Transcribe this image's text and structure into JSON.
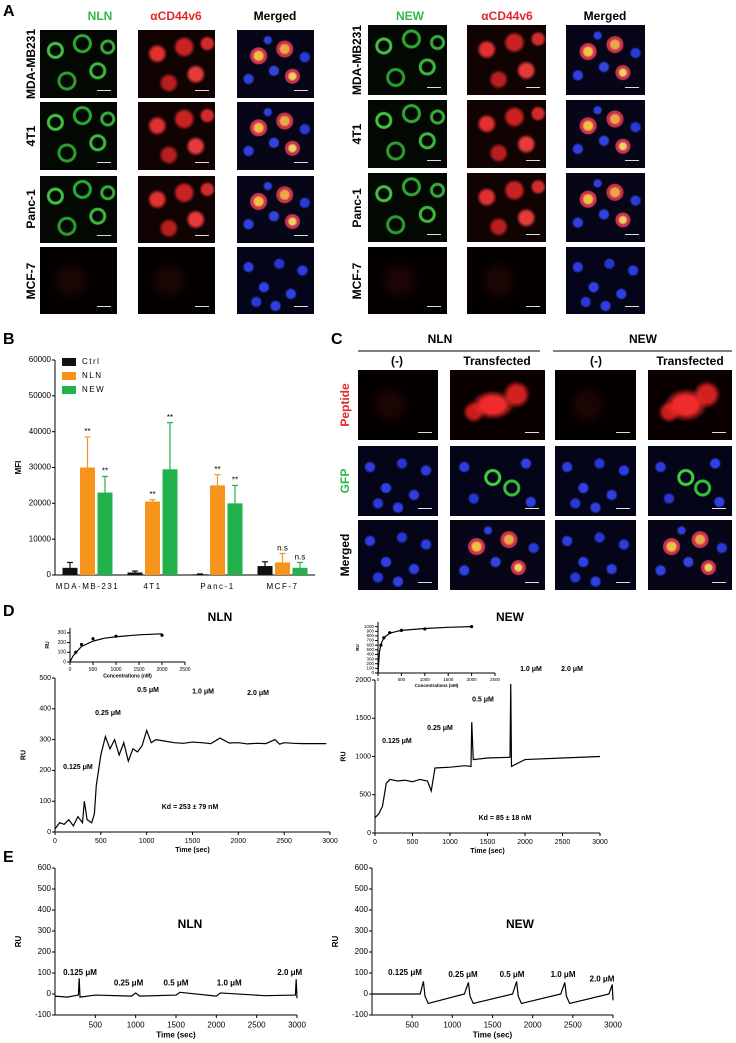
{
  "panel_labels": [
    "A",
    "B",
    "C",
    "D",
    "E"
  ],
  "panel_a": {
    "left": {
      "columns": [
        "NLN",
        "αCD44v6",
        "Merged"
      ],
      "rows": [
        "MDA-MB231",
        "4T1",
        "Panc-1",
        "MCF-7"
      ]
    },
    "right": {
      "columns": [
        "NEW",
        "αCD44v6",
        "Merged"
      ],
      "rows": [
        "MDA-MB231",
        "4T1",
        "Panc-1",
        "MCF-7"
      ]
    }
  },
  "panel_c": {
    "groups": [
      "NLN",
      "NEW"
    ],
    "columns": [
      "(-)",
      "Transfected",
      "(-)",
      "Transfected"
    ],
    "rows": [
      "Peptide",
      "GFP",
      "Merged"
    ]
  },
  "chart_data": [
    {
      "type": "bar",
      "categories": [
        "MDA-MB-231",
        "4T1",
        "Panc-1",
        "MCF-7"
      ],
      "y_label": "MFI",
      "ylim": [
        0,
        60000
      ],
      "yticks": [
        0,
        10000,
        20000,
        30000,
        40000,
        50000,
        60000
      ],
      "legend": "upper left",
      "series": [
        {
          "name": "Ctrl",
          "color": "#111111",
          "values": [
            2000,
            700,
            200,
            2500
          ],
          "errors": [
            1500,
            400,
            100,
            1200
          ]
        },
        {
          "name": "NLN",
          "color": "#f7941d",
          "values": [
            30000,
            20500,
            25000,
            3500
          ],
          "errors": [
            8500,
            500,
            3000,
            2500
          ],
          "annotations": [
            "**",
            "**",
            "**",
            "n.s"
          ]
        },
        {
          "name": "NEW",
          "color": "#22b24c",
          "values": [
            23000,
            29500,
            20000,
            2000
          ],
          "errors": [
            4500,
            13000,
            5000,
            1500
          ],
          "annotations": [
            "**",
            "**",
            "**",
            "n.s"
          ]
        }
      ]
    },
    {
      "type": "line",
      "title": "NLN",
      "x_label": "Time (sec)",
      "y_label": "RU",
      "color": "#000000",
      "xlim": [
        0,
        3000
      ],
      "ylim": [
        0,
        500
      ],
      "xticks": [
        0,
        500,
        1000,
        1500,
        2000,
        2500,
        3000
      ],
      "yticks": [
        0,
        100,
        200,
        300,
        400,
        500
      ],
      "x": [
        0,
        50,
        100,
        150,
        200,
        250,
        300,
        320,
        350,
        400,
        430,
        450,
        500,
        550,
        600,
        650,
        700,
        750,
        800,
        850,
        900,
        950,
        1000,
        1050,
        1100,
        1200,
        1300,
        1400,
        1500,
        1600,
        1700,
        1800,
        1900,
        2000,
        2100,
        2200,
        2300,
        2400,
        2450,
        2500,
        2600,
        2700,
        2800,
        2900,
        2960
      ],
      "values": [
        10,
        30,
        25,
        40,
        20,
        50,
        30,
        100,
        40,
        30,
        60,
        150,
        250,
        310,
        270,
        300,
        250,
        290,
        230,
        270,
        260,
        280,
        330,
        290,
        300,
        295,
        290,
        288,
        292,
        290,
        287,
        305,
        289,
        290,
        286,
        288,
        287,
        300,
        285,
        290,
        288,
        287,
        287,
        287,
        287
      ],
      "annotations": [
        {
          "text": "0.125 μM",
          "x": 250,
          "y": 210
        },
        {
          "text": "0.25 μM",
          "x": 578,
          "y": 386
        },
        {
          "text": "0.5 μM",
          "x": 1015,
          "y": 461
        },
        {
          "text": "1.0 μM",
          "x": 1615,
          "y": 455
        },
        {
          "text": "2.0 μM",
          "x": 2215,
          "y": 451
        },
        {
          "text": "Kd = 253 ± 79 nM",
          "x": 1473,
          "y": 81
        }
      ]
    },
    {
      "type": "line",
      "x_label": "Concentrations (nM)",
      "y_label": "RU",
      "xlim": [
        0,
        2500
      ],
      "ylim": [
        0,
        350
      ],
      "xticks": [
        0,
        500,
        1000,
        1500,
        2000,
        2500
      ],
      "yticks": [
        0,
        100,
        200,
        300
      ],
      "series": [
        {
          "color": "#000000",
          "style": "markers",
          "x": [
            125,
            250,
            500,
            1000,
            2000
          ],
          "values": [
            100,
            180,
            240,
            265,
            275
          ]
        },
        {
          "color": "#000000",
          "style": "line",
          "x": [
            0,
            62.5,
            125,
            250,
            500,
            750,
            1000,
            1500,
            2000
          ],
          "values": [
            0,
            60,
            95,
            160,
            215,
            245,
            260,
            280,
            290
          ]
        }
      ]
    },
    {
      "type": "line",
      "title": "NEW",
      "x_label": "Time (sec)",
      "y_label": "RU",
      "color": "#000000",
      "xlim": [
        0,
        3000
      ],
      "ylim": [
        0,
        2000
      ],
      "xticks": [
        0,
        500,
        1000,
        1500,
        2000,
        2500,
        3000
      ],
      "yticks": [
        0,
        500,
        1000,
        1500,
        2000
      ],
      "x": [
        0,
        50,
        100,
        150,
        200,
        300,
        400,
        500,
        600,
        700,
        750,
        800,
        1000,
        1200,
        1280,
        1290,
        1310,
        1500,
        1800,
        1810,
        1820,
        2000,
        2500,
        3000
      ],
      "values": [
        200,
        250,
        350,
        650,
        700,
        680,
        690,
        670,
        700,
        680,
        550,
        850,
        860,
        880,
        870,
        1450,
        960,
        980,
        990,
        1950,
        870,
        960,
        980,
        1000
      ],
      "annotations": [
        {
          "text": "0.125 μM",
          "x": 293,
          "y": 1200
        },
        {
          "text": "0.25 μM",
          "x": 867,
          "y": 1370
        },
        {
          "text": "0.5 μM",
          "x": 1440,
          "y": 1740
        },
        {
          "text": "1.0 μM",
          "x": 2080,
          "y": 2144
        },
        {
          "text": "2.0 μM",
          "x": 2627,
          "y": 2144
        },
        {
          "text": "Kd = 85 ± 18 nM",
          "x": 1733,
          "y": 196
        }
      ]
    },
    {
      "type": "line",
      "x_label": "Concentrations (nM)",
      "y_label": "RU",
      "xlim": [
        0,
        2500
      ],
      "ylim": [
        0,
        1100
      ],
      "xticks": [
        0,
        500,
        1000,
        1500,
        2000,
        2500
      ],
      "yticks": [
        0,
        100,
        200,
        300,
        400,
        500,
        600,
        700,
        800,
        900,
        1000
      ],
      "series": [
        {
          "color": "#000000",
          "style": "markers",
          "x": [
            62.5,
            125,
            250,
            500,
            1000,
            2000
          ],
          "values": [
            600,
            760,
            870,
            920,
            950,
            1000
          ]
        },
        {
          "color": "#000000",
          "style": "line",
          "x": [
            0,
            30,
            62.5,
            125,
            250,
            500,
            1000,
            1500,
            2000
          ],
          "values": [
            0,
            450,
            620,
            760,
            860,
            920,
            960,
            985,
            1000
          ]
        }
      ]
    },
    {
      "type": "line",
      "title": "NLN",
      "x_label": "Time (sec)",
      "y_label": "RU",
      "color": "#000000",
      "xlim": [
        0,
        3000
      ],
      "ylim": [
        -100,
        600
      ],
      "xticks": [
        500,
        1000,
        1500,
        2000,
        2500,
        3000
      ],
      "yticks": [
        -100,
        0,
        100,
        200,
        300,
        400,
        500,
        600
      ],
      "x": [
        0,
        150,
        290,
        300,
        310,
        500,
        950,
        1000,
        1050,
        1500,
        1550,
        2000,
        2050,
        2600,
        2980,
        2990,
        3000
      ],
      "values": [
        -10,
        -15,
        -5,
        75,
        -15,
        -5,
        -10,
        5,
        -10,
        -5,
        8,
        -10,
        5,
        -8,
        -5,
        70,
        -20
      ],
      "annotations": [
        {
          "text": "0.125 μM",
          "x": 310,
          "y": 100
        },
        {
          "text": "0.25 μM",
          "x": 912,
          "y": 50
        },
        {
          "text": "0.5 μM",
          "x": 1500,
          "y": 50
        },
        {
          "text": "1.0 μM",
          "x": 2160,
          "y": 50
        },
        {
          "text": "2.0 μM",
          "x": 2910,
          "y": 100
        }
      ]
    },
    {
      "type": "line",
      "title": "NEW",
      "x_label": "Time (sec)",
      "y_label": "RU",
      "color": "#000000",
      "xlim": [
        0,
        3000
      ],
      "ylim": [
        -100,
        600
      ],
      "xticks": [
        500,
        1000,
        1500,
        2000,
        2500,
        3000
      ],
      "yticks": [
        -100,
        0,
        100,
        200,
        300,
        400,
        500,
        600
      ],
      "x": [
        0,
        600,
        640,
        660,
        700,
        1150,
        1200,
        1220,
        1260,
        1750,
        1800,
        1820,
        1860,
        2350,
        2400,
        2420,
        2460,
        2950,
        2990,
        3000
      ],
      "values": [
        0,
        0,
        60,
        -10,
        -45,
        0,
        55,
        -10,
        -45,
        0,
        60,
        -10,
        -45,
        0,
        55,
        -10,
        -45,
        0,
        45,
        -30
      ],
      "annotations": [
        {
          "text": "0.125 μM",
          "x": 411,
          "y": 100
        },
        {
          "text": "0.25 μM",
          "x": 1133,
          "y": 90
        },
        {
          "text": "0.5 μM",
          "x": 1743,
          "y": 90
        },
        {
          "text": "1.0 μM",
          "x": 2378,
          "y": 90
        },
        {
          "text": "2.0 μM",
          "x": 2863,
          "y": 70
        }
      ]
    }
  ]
}
